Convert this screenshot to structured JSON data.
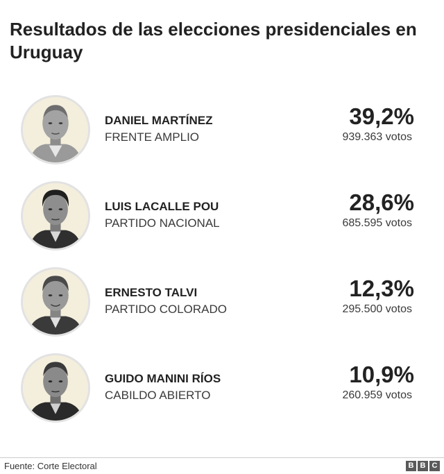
{
  "title": "Resultados de las elecciones presidenciales en Uruguay",
  "candidates": [
    {
      "name": "DANIEL MARTÍNEZ",
      "party": "FRENTE AMPLIO",
      "percent": "39,2%",
      "votes": "939.363 votos"
    },
    {
      "name": "LUIS LACALLE POU",
      "party": "PARTIDO NACIONAL",
      "percent": "28,6%",
      "votes": "685.595 votos"
    },
    {
      "name": "ERNESTO TALVI",
      "party": "PARTIDO COLORADO",
      "percent": "12,3%",
      "votes": "295.500 votos"
    },
    {
      "name": "GUIDO MANINI RÍOS",
      "party": "CABILDO ABIERTO",
      "percent": "10,9%",
      "votes": "260.959 votos"
    }
  ],
  "footer": {
    "source": "Fuente: Corte Electoral",
    "logo_letters": [
      "B",
      "B",
      "C"
    ]
  },
  "colors": {
    "avatar_background": "#f4eedc",
    "avatar_ring": "#e2e2e2",
    "logo_box": "#5a5a5a"
  }
}
